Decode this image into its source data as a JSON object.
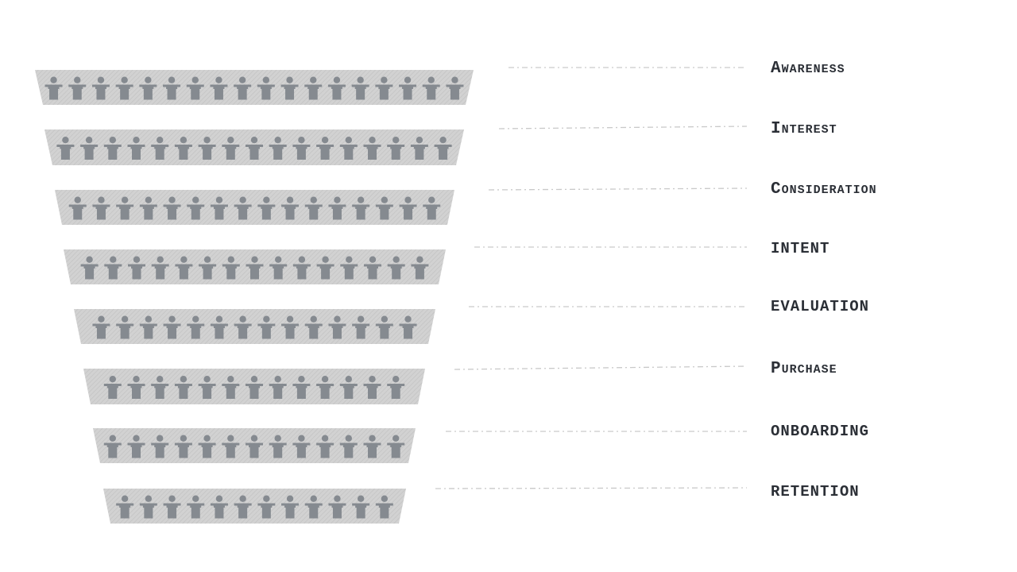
{
  "funnel": {
    "stages": [
      {
        "label": "Awareness",
        "people": 18
      },
      {
        "label": "Interest",
        "people": 17
      },
      {
        "label": "Consideration",
        "people": 16
      },
      {
        "label": "INTENT",
        "people": 15
      },
      {
        "label": "EVALUATION",
        "people": 14
      },
      {
        "label": "Purchase",
        "people": 13
      },
      {
        "label": "ONBOARDING",
        "people": 13
      },
      {
        "label": "RETENTION",
        "people": 12
      }
    ]
  },
  "colors": {
    "band_fill": "#d0d0d0",
    "band_hatch": "#c4c4c4",
    "person": "#858a90",
    "connector": "#c9c9c9",
    "label": "#2b2f36"
  },
  "icons": {
    "person": "person-icon"
  }
}
